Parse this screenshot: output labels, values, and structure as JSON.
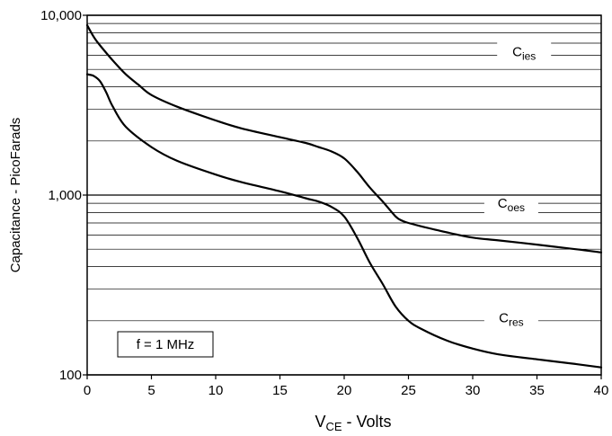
{
  "chart_data": {
    "type": "line",
    "title": "",
    "xlabel_main": "V",
    "xlabel_sub": "CE",
    "xlabel_rest": " - Volts",
    "ylabel": "Capacitance - PicoFarads",
    "xscale": "linear",
    "yscale": "log",
    "xlim": [
      0,
      40
    ],
    "ylim": [
      100,
      10000
    ],
    "x_ticks": [
      0,
      5,
      10,
      15,
      20,
      25,
      30,
      35,
      40
    ],
    "x_tick_labels": [
      "0",
      "5",
      "10",
      "15",
      "20",
      "25",
      "30",
      "35",
      "40"
    ],
    "y_ticks": [
      100,
      1000,
      10000
    ],
    "y_tick_labels": [
      "100",
      "1,000",
      "10,000"
    ],
    "grid": {
      "horizontal": true,
      "vertical": false
    },
    "annotation": "f = 1 MHz",
    "series": [
      {
        "name": "Cies",
        "label_main": "C",
        "label_sub": "ies",
        "x": [
          0,
          0.5,
          1,
          2,
          3,
          4,
          5,
          7,
          10,
          12,
          15,
          17,
          18,
          19,
          20,
          21,
          22,
          23,
          24,
          24.5,
          25,
          26,
          28,
          30,
          32,
          35,
          38,
          40
        ],
        "y": [
          8800,
          7600,
          6800,
          5600,
          4700,
          4100,
          3600,
          3100,
          2600,
          2350,
          2100,
          1950,
          1850,
          1750,
          1600,
          1350,
          1100,
          920,
          760,
          720,
          700,
          670,
          620,
          580,
          560,
          530,
          500,
          480
        ]
      },
      {
        "name": "Coes",
        "label_main": "C",
        "label_sub": "oes",
        "x": [
          0,
          0.5,
          1,
          1.5,
          2,
          3,
          5,
          7,
          10,
          12,
          15,
          17,
          18,
          19,
          20,
          21,
          22,
          23,
          24,
          25,
          26,
          28,
          30,
          32,
          35,
          38,
          40
        ],
        "y": [
          4700,
          4600,
          4300,
          3700,
          3100,
          2400,
          1850,
          1550,
          1300,
          1180,
          1050,
          960,
          920,
          860,
          760,
          580,
          420,
          320,
          240,
          200,
          180,
          155,
          140,
          130,
          122,
          115,
          110
        ]
      }
    ]
  }
}
